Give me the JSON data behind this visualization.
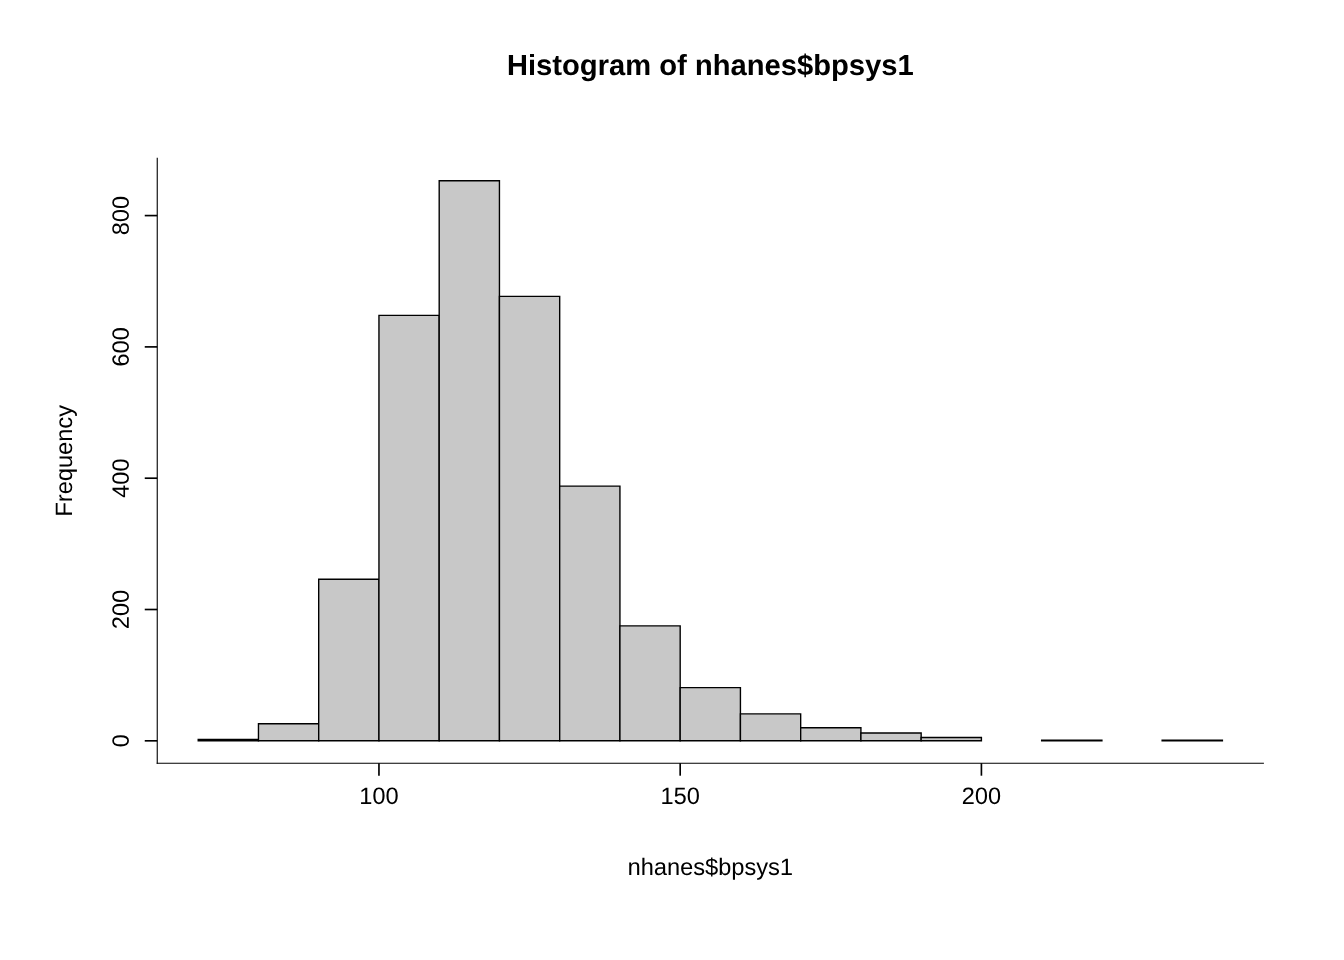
{
  "chart_data": {
    "type": "histogram",
    "title": "Histogram of nhanes$bpsys1",
    "xlabel": "nhanes$bpsys1",
    "ylabel": "Frequency",
    "bins": [
      70,
      80,
      90,
      100,
      110,
      120,
      130,
      140,
      150,
      160,
      170,
      180,
      190,
      200,
      210,
      220,
      230,
      240
    ],
    "values": [
      2,
      26,
      246,
      648,
      853,
      677,
      388,
      175,
      81,
      41,
      20,
      12,
      5,
      0,
      1,
      0,
      1
    ],
    "color": "#c8c8c8",
    "xlim": [
      63.2,
      246.8
    ],
    "ylim": [
      -34.1,
      887.1
    ],
    "xticks": [
      100,
      150,
      200
    ],
    "yticks": [
      0,
      200,
      400,
      600,
      800
    ],
    "grid": false
  }
}
